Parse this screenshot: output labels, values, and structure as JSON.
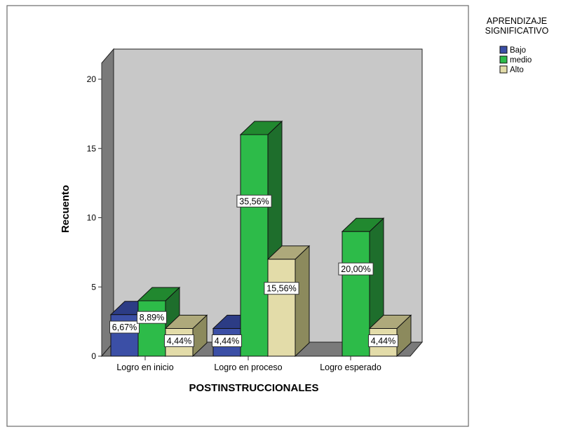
{
  "chart_data": {
    "type": "bar",
    "style": "3d-clustered",
    "title": "",
    "xlabel": "POSTINSTRUCCIONALES",
    "ylabel": "Recuento",
    "ylim": [
      0,
      20
    ],
    "yticks": [
      "0",
      "5",
      "10",
      "15",
      "20"
    ],
    "categories": [
      "Logro en inicio",
      "Logro en proceso",
      "Logro esperado"
    ],
    "series": [
      {
        "name": "Bajo",
        "values": [
          3,
          2,
          0
        ],
        "labels": [
          "6,67%",
          "4,44%",
          ""
        ]
      },
      {
        "name": "medio",
        "values": [
          4,
          16,
          9
        ],
        "labels": [
          "8,89%",
          "35,56%",
          "20,00%"
        ]
      },
      {
        "name": "Alto",
        "values": [
          2,
          7,
          2
        ],
        "labels": [
          "4,44%",
          "15,56%",
          "4,44%"
        ]
      }
    ],
    "legend": {
      "title_lines": [
        "APRENDIZAJE",
        "SIGNIFICATIVO"
      ],
      "placement": "top-right"
    },
    "colors": {
      "Bajo": {
        "front": "#3b4fa6",
        "side": "#232f6b",
        "top": "#2c3c85"
      },
      "medio": {
        "front": "#2dbb49",
        "side": "#1e6e2c",
        "top": "#21882f"
      },
      "Alto": {
        "front": "#e3dca9",
        "side": "#8c8a5d",
        "top": "#aea97b"
      },
      "wall": "#c8c8c8",
      "floor": "#7a7a7a",
      "sidewall": "#7a7a7a"
    }
  }
}
